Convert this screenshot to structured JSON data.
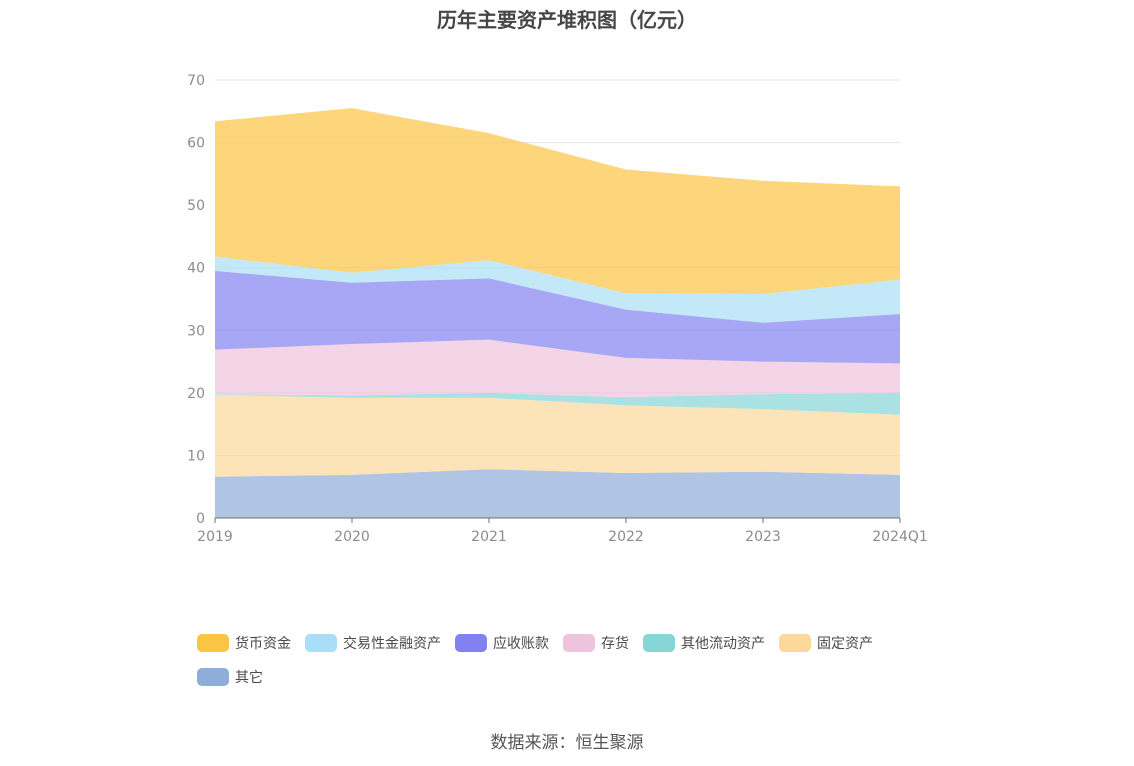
{
  "chart_data": {
    "type": "area",
    "stacked": true,
    "title": "历年主要资产堆积图（亿元）",
    "categories": [
      "2019",
      "2020",
      "2021",
      "2022",
      "2023",
      "2024Q1"
    ],
    "ylim": [
      0,
      70
    ],
    "yticks": [
      0,
      10,
      20,
      30,
      40,
      50,
      60,
      70
    ],
    "grid": true,
    "legend_position": "bottom",
    "series": [
      {
        "name": "其它",
        "color": "#8fadd9",
        "values": [
          6.6,
          6.9,
          7.8,
          7.2,
          7.4,
          6.9
        ]
      },
      {
        "name": "固定资产",
        "color": "#fcd89a",
        "values": [
          13.1,
          12.3,
          11.4,
          10.8,
          10.0,
          9.6
        ]
      },
      {
        "name": "其他流动资产",
        "color": "#86d6d8",
        "values": [
          0.1,
          0.4,
          0.8,
          1.3,
          2.4,
          3.5
        ]
      },
      {
        "name": "存货",
        "color": "#eec3dd",
        "values": [
          7.1,
          8.2,
          8.5,
          6.3,
          5.2,
          4.7
        ]
      },
      {
        "name": "应收账款",
        "color": "#8181f1",
        "values": [
          12.6,
          9.8,
          9.8,
          7.7,
          6.2,
          7.9
        ]
      },
      {
        "name": "交易性金融资产",
        "color": "#a9dff6",
        "values": [
          2.3,
          1.6,
          2.9,
          2.6,
          4.6,
          5.5
        ]
      },
      {
        "name": "货币资金",
        "color": "#fcc444",
        "values": [
          21.6,
          26.3,
          20.3,
          19.8,
          18.1,
          14.9
        ]
      }
    ]
  },
  "legend": [
    {
      "name": "货币资金",
      "color": "#fcc444"
    },
    {
      "name": "交易性金融资产",
      "color": "#a9dff6"
    },
    {
      "name": "应收账款",
      "color": "#8181f1"
    },
    {
      "name": "存货",
      "color": "#eec3dd"
    },
    {
      "name": "其他流动资产",
      "color": "#86d6d8"
    },
    {
      "name": "固定资产",
      "color": "#fcd89a"
    },
    {
      "name": "其它",
      "color": "#8fadd9"
    }
  ],
  "source": "数据来源：恒生聚源"
}
